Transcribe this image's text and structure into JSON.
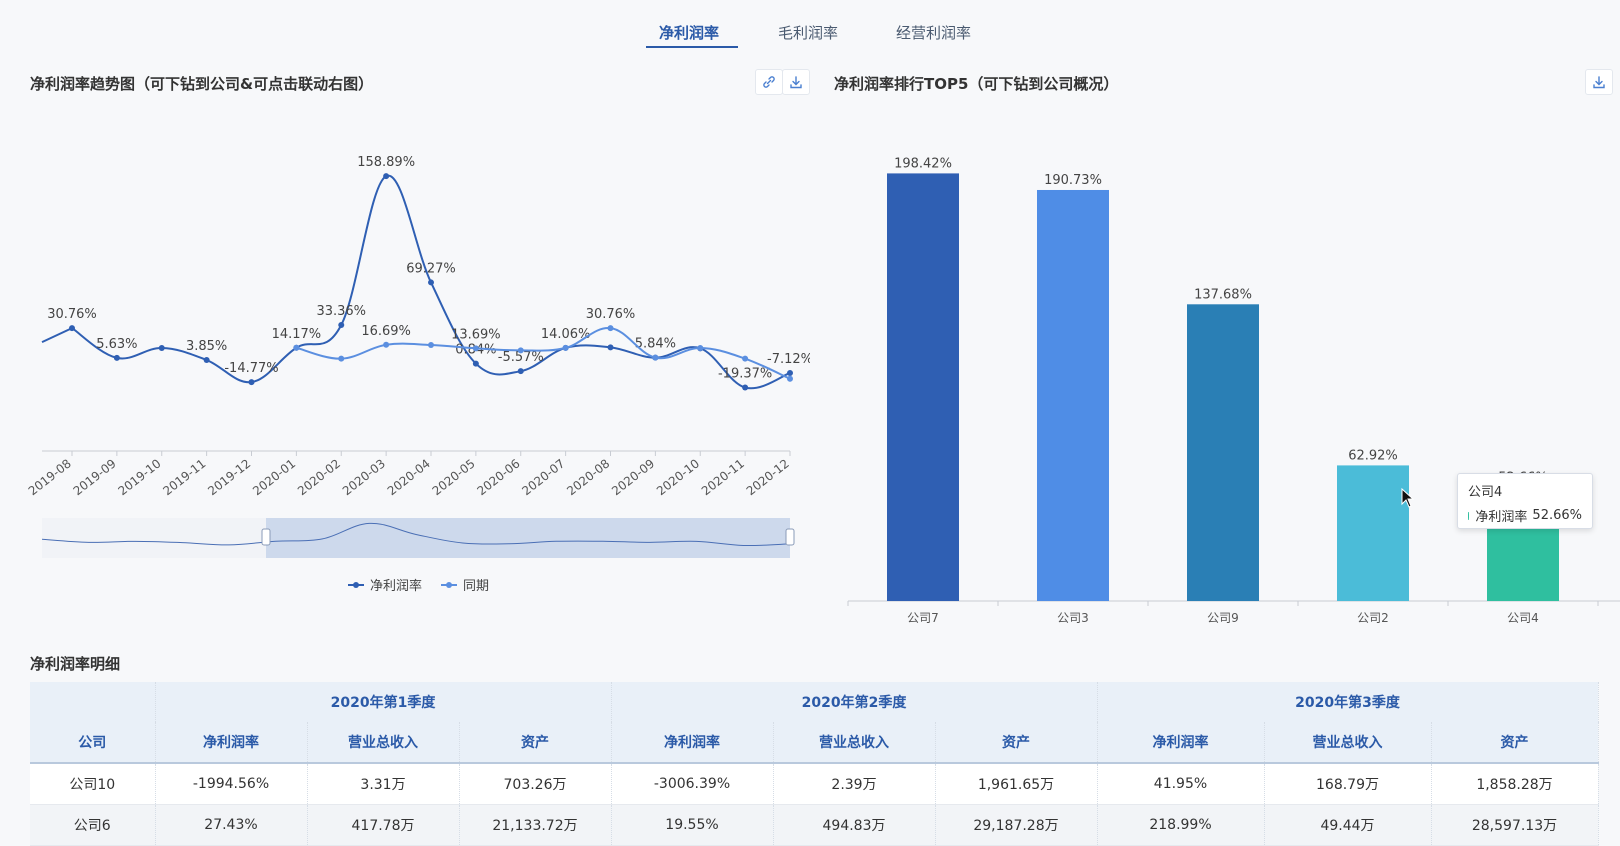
{
  "tabs": [
    {
      "label": "净利润率",
      "active": true
    },
    {
      "label": "毛利润率",
      "active": false
    },
    {
      "label": "经营利润率",
      "active": false
    }
  ],
  "left_panel": {
    "title": "净利润率趋势图（可下钻到公司&可点击联动右图）",
    "icons": [
      "link-icon",
      "download-icon"
    ]
  },
  "right_panel": {
    "title": "净利润率排行TOP5（可下钻到公司概况）",
    "icons": [
      "download-icon"
    ]
  },
  "legend": [
    {
      "name": "净利润率",
      "color": "#2f5fb3"
    },
    {
      "name": "同期",
      "color": "#5b8fe0"
    }
  ],
  "tooltip": {
    "title": "公司4",
    "series": "净利润率",
    "value": "52.66%",
    "color": "#2fbf9f"
  },
  "chart_data": [
    {
      "type": "line",
      "title": "净利润率趋势图（可下钻到公司&可点击联动右图）",
      "x": [
        "2019-08",
        "2019-09",
        "2019-10",
        "2019-11",
        "2019-12",
        "2020-01",
        "2020-02",
        "2020-03",
        "2020-04",
        "2020-05",
        "2020-06",
        "2020-07",
        "2020-08",
        "2020-09",
        "2020-10",
        "2020-11",
        "2020-12"
      ],
      "series": [
        {
          "name": "净利润率",
          "color": "#2f5fb3",
          "values": [
            30.76,
            5.63,
            14.0,
            3.85,
            -14.77,
            14.17,
            33.36,
            158.89,
            69.27,
            0.84,
            -5.57,
            14.06,
            14.5,
            5.84,
            13.69,
            -19.37,
            -7.12
          ],
          "labels": [
            "30.76%",
            "5.63%",
            "",
            "3.85%",
            "-14.77%",
            "14.17%",
            "33.36%",
            "158.89%",
            "69.27%",
            "0.84%",
            "-5.57%",
            "14.06%",
            "",
            "5.84%",
            "",
            "-19.37%",
            "-7.12%"
          ]
        },
        {
          "name": "同期",
          "color": "#5b8fe0",
          "values": [
            null,
            null,
            null,
            null,
            null,
            14.17,
            5.0,
            16.69,
            16.5,
            13.69,
            12.0,
            14.06,
            30.76,
            5.84,
            14.0,
            5.0,
            -12.0
          ],
          "labels": [
            "",
            "",
            "",
            "",
            "",
            "",
            "",
            "16.69%",
            "",
            "13.69%",
            "",
            "",
            "30.76%",
            "",
            "",
            "",
            ""
          ]
        }
      ],
      "ylim": [
        -40,
        170
      ],
      "legend": "bottom",
      "data_zoom": true
    },
    {
      "type": "bar",
      "title": "净利润率排行TOP5（可下钻到公司概况）",
      "categories": [
        "公司7",
        "公司3",
        "公司9",
        "公司2",
        "公司4"
      ],
      "values": [
        198.42,
        190.73,
        137.68,
        62.92,
        52.66
      ],
      "labels": [
        "198.42%",
        "190.73%",
        "137.68%",
        "62.92%",
        "52.66%"
      ],
      "colors": [
        "#2f5fb3",
        "#4f8de6",
        "#2a7fb5",
        "#4bbcd8",
        "#2fbf9f"
      ],
      "ylim": [
        0,
        200
      ]
    }
  ],
  "table": {
    "title": "净利润率明细",
    "quarters": [
      "2020年第1季度",
      "2020年第2季度",
      "2020年第3季度"
    ],
    "columns": [
      "公司",
      "净利润率",
      "营业总收入",
      "资产",
      "净利润率",
      "营业总收入",
      "资产",
      "净利润率",
      "营业总收入",
      "资产"
    ],
    "rows": [
      [
        "公司10",
        "-1994.56%",
        "3.31万",
        "703.26万",
        "-3006.39%",
        "2.39万",
        "1,961.65万",
        "41.95%",
        "168.79万",
        "1,858.28万"
      ],
      [
        "公司6",
        "27.43%",
        "417.78万",
        "21,133.72万",
        "19.55%",
        "494.83万",
        "29,187.28万",
        "218.99%",
        "49.44万",
        "28,597.13万"
      ]
    ]
  }
}
